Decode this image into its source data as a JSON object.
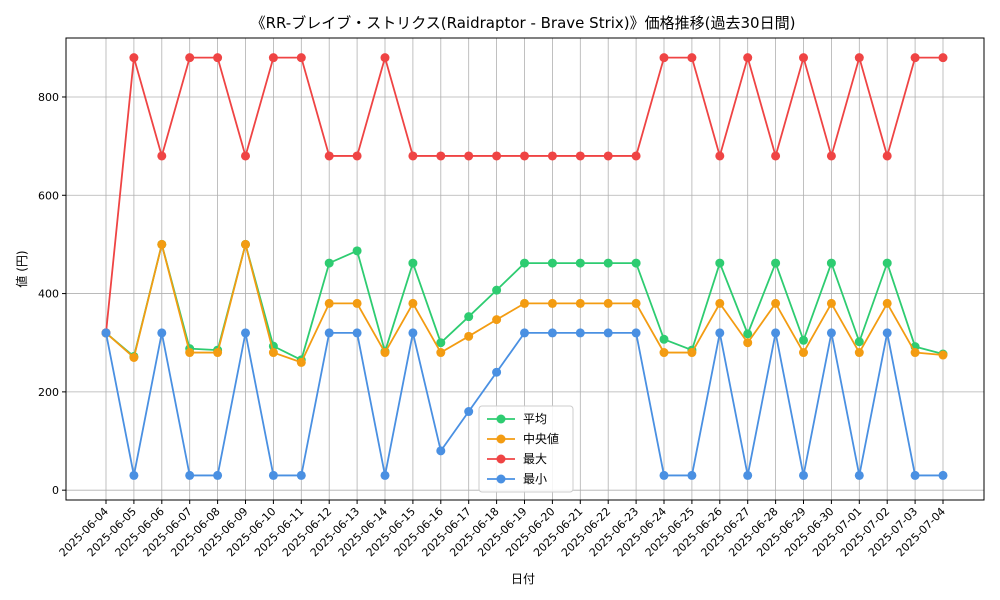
{
  "chart_data": {
    "type": "line",
    "title": "《RR-ブレイブ・ストリクス(Raidraptor - Brave Strix)》価格推移(過去30日間)",
    "xlabel": "日付",
    "ylabel": "値 (円)",
    "ylim": [
      -20,
      920
    ],
    "yticks": [
      0,
      200,
      400,
      600,
      800
    ],
    "grid": true,
    "legend_position": "lower-center",
    "categories": [
      "2025-06-04",
      "2025-06-05",
      "2025-06-06",
      "2025-06-07",
      "2025-06-08",
      "2025-06-09",
      "2025-06-10",
      "2025-06-11",
      "2025-06-12",
      "2025-06-13",
      "2025-06-14",
      "2025-06-15",
      "2025-06-16",
      "2025-06-17",
      "2025-06-18",
      "2025-06-19",
      "2025-06-20",
      "2025-06-21",
      "2025-06-22",
      "2025-06-23",
      "2025-06-24",
      "2025-06-25",
      "2025-06-26",
      "2025-06-27",
      "2025-06-28",
      "2025-06-29",
      "2025-06-30",
      "2025-07-01",
      "2025-07-02",
      "2025-07-03",
      "2025-07-04"
    ],
    "series": [
      {
        "name": "平均",
        "color": "#2ecc71",
        "values": [
          320,
          272,
          500,
          288,
          285,
          500,
          293,
          265,
          462,
          487,
          282,
          462,
          300,
          353,
          407,
          462,
          462,
          462,
          462,
          462,
          307,
          285,
          462,
          318,
          462,
          305,
          462,
          302,
          462,
          292,
          277
        ]
      },
      {
        "name": "中央値",
        "color": "#f39c12",
        "values": [
          320,
          270,
          500,
          280,
          280,
          500,
          280,
          260,
          380,
          380,
          280,
          380,
          280,
          313,
          347,
          380,
          380,
          380,
          380,
          380,
          280,
          280,
          380,
          300,
          380,
          280,
          380,
          280,
          380,
          280,
          275
        ]
      },
      {
        "name": "最大",
        "color": "#ef4444",
        "values": [
          320,
          880,
          680,
          880,
          880,
          680,
          880,
          880,
          680,
          680,
          880,
          680,
          680,
          680,
          680,
          680,
          680,
          680,
          680,
          680,
          880,
          880,
          680,
          880,
          680,
          880,
          680,
          880,
          680,
          880,
          880
        ]
      },
      {
        "name": "最小",
        "color": "#4a90e2",
        "values": [
          320,
          30,
          320,
          30,
          30,
          320,
          30,
          30,
          320,
          320,
          30,
          320,
          80,
          160,
          240,
          320,
          320,
          320,
          320,
          320,
          30,
          30,
          320,
          30,
          320,
          30,
          320,
          30,
          320,
          30,
          30
        ]
      }
    ]
  }
}
